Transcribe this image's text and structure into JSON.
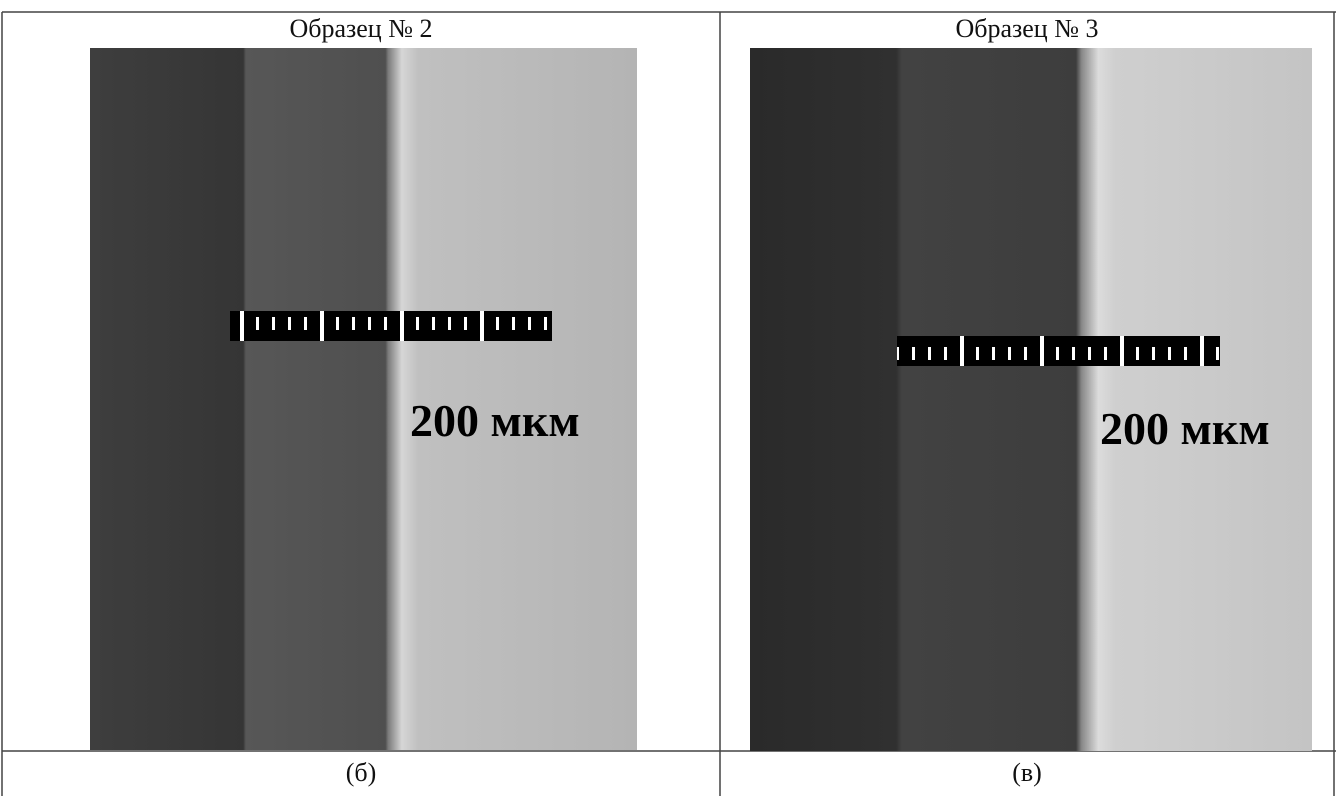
{
  "header": {
    "cells": [
      "Образец № 2",
      "Образец № 3"
    ]
  },
  "images": [
    {
      "scale_label": "200 мкм"
    },
    {
      "scale_label": "200 мкм"
    }
  ],
  "captions": [
    "(б)",
    "(в)"
  ]
}
